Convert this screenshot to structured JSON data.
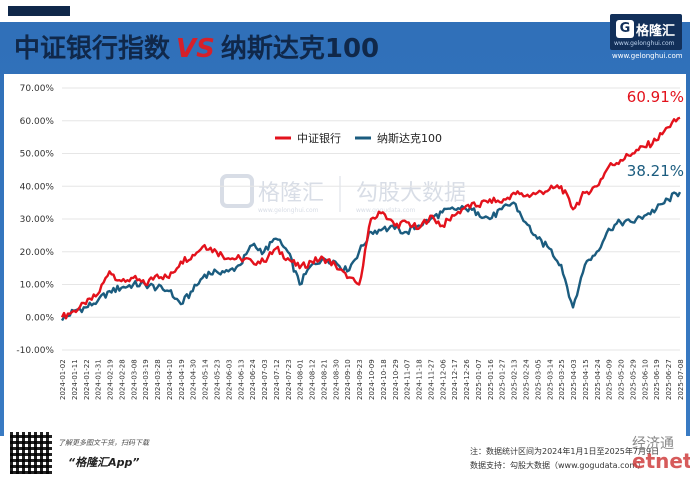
{
  "title": {
    "left": "中证银行指数",
    "vs": "VS",
    "right": "纳斯达克100"
  },
  "logo": {
    "brand": "格隆汇",
    "url": "www.gelonghui.com"
  },
  "watermark": {
    "brand": "格隆汇",
    "url": "www.gelonghui.com",
    "center": "勾股大数据",
    "center_url": "www.gogudata.com"
  },
  "footer": {
    "qr_caption": "了解更多图文干货，扫码下载",
    "app_name": "“格隆汇App”",
    "note_period": "注：数据统计区间为2024年1月1日至2025年7月9日",
    "note_source": "数据支持：勾股大数据（www.gogudata.com）",
    "watermark_name": "经济通",
    "watermark_logo": "etnet"
  },
  "colors": {
    "bank": "#e3121c",
    "nasdaq": "#1b5c7f",
    "frame": "#2f6fb8"
  },
  "chart_data": {
    "type": "line",
    "title": "中证银行指数 VS 纳斯达克100",
    "ylim": [
      -10,
      70
    ],
    "y_ticks": [
      "-10.00%",
      "0.00%",
      "10.00%",
      "20.00%",
      "30.00%",
      "40.00%",
      "50.00%",
      "60.00%",
      "70.00%"
    ],
    "legend_position": "top-center",
    "x": [
      "2024-01-02",
      "2024-01-11",
      "2024-01-22",
      "2024-01-31",
      "2024-02-19",
      "2024-02-28",
      "2024-03-08",
      "2024-03-19",
      "2024-03-28",
      "2024-04-10",
      "2024-04-19",
      "2024-04-30",
      "2024-05-14",
      "2024-05-23",
      "2024-06-03",
      "2024-06-13",
      "2024-06-24",
      "2024-07-03",
      "2024-07-12",
      "2024-07-23",
      "2024-08-01",
      "2024-08-12",
      "2024-08-21",
      "2024-08-30",
      "2024-09-10",
      "2024-09-23",
      "2024-10-09",
      "2024-10-18",
      "2024-10-29",
      "2024-11-07",
      "2024-11-18",
      "2024-11-27",
      "2024-12-06",
      "2024-12-17",
      "2024-12-26",
      "2025-01-07",
      "2025-01-16",
      "2025-01-27",
      "2025-02-13",
      "2025-02-24",
      "2025-03-05",
      "2025-03-14",
      "2025-03-25",
      "2025-04-03",
      "2025-04-15",
      "2025-04-24",
      "2025-05-09",
      "2025-05-20",
      "2025-05-29",
      "2025-06-10",
      "2025-06-19",
      "2025-06-27",
      "2025-07-08"
    ],
    "series": [
      {
        "name": "中证银行",
        "end_label": "60.91%",
        "values": [
          0,
          2,
          4,
          7,
          14,
          11,
          12,
          10,
          13,
          12,
          17,
          19,
          22,
          20,
          18,
          18,
          17,
          17,
          21,
          18,
          15,
          17,
          18,
          16,
          12,
          10,
          30,
          32,
          28,
          29,
          27,
          31,
          28,
          31,
          34,
          34,
          36,
          35,
          38,
          37,
          38,
          39,
          40,
          33,
          38,
          40,
          46,
          48,
          50,
          52,
          54,
          58,
          60.91
        ]
      },
      {
        "name": "纳斯达克100",
        "end_label": "38.21%",
        "values": [
          -1,
          2,
          3,
          5,
          8,
          9,
          10,
          10,
          9,
          8,
          4,
          8,
          13,
          14,
          14,
          16,
          22,
          20,
          24,
          20,
          10,
          16,
          18,
          17,
          14,
          20,
          26,
          27,
          27,
          26,
          28,
          30,
          32,
          33,
          33,
          32,
          30,
          33,
          35,
          29,
          24,
          21,
          16,
          3,
          16,
          20,
          27,
          29,
          29,
          31,
          33,
          36,
          38.21
        ]
      }
    ]
  }
}
